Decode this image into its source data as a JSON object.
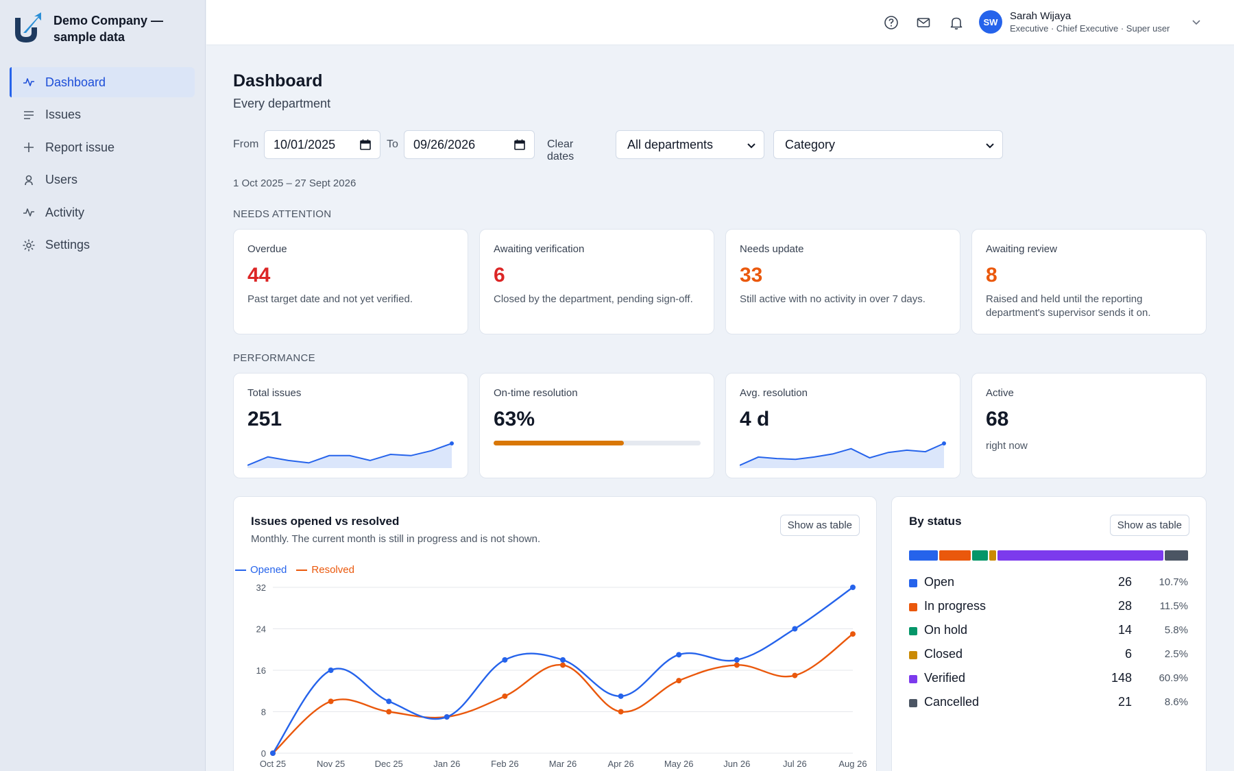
{
  "brand": {
    "name": "Demo Company — sample data"
  },
  "nav": {
    "items": [
      {
        "label": "Dashboard",
        "icon": "activity-icon",
        "active": true
      },
      {
        "label": "Issues",
        "icon": "list-icon",
        "active": false
      },
      {
        "label": "Report issue",
        "icon": "plus-icon",
        "active": false
      },
      {
        "label": "Users",
        "icon": "user-icon",
        "active": false
      },
      {
        "label": "Activity",
        "icon": "activity-icon",
        "active": false
      },
      {
        "label": "Settings",
        "icon": "gear-icon",
        "active": false
      }
    ]
  },
  "header": {
    "user": {
      "initials": "SW",
      "name": "Sarah Wijaya",
      "role": "Executive · Chief Executive · Super user"
    }
  },
  "page": {
    "title": "Dashboard",
    "subtitle": "Every department"
  },
  "filters": {
    "from_label": "From",
    "from_value": "10/01/2025",
    "to_label": "To",
    "to_value": "09/26/2026",
    "clear_label": "Clear dates",
    "department": "All departments",
    "category": "Category",
    "range_text": "1 Oct 2025 – 27 Sept 2026"
  },
  "attention": {
    "section_label": "NEEDS ATTENTION",
    "cards": [
      {
        "label": "Overdue",
        "value": "44",
        "desc": "Past target date and not yet verified.",
        "color": "#dc2626"
      },
      {
        "label": "Awaiting verification",
        "value": "6",
        "desc": "Closed by the department, pending sign-off.",
        "color": "#dc2626"
      },
      {
        "label": "Needs update",
        "value": "33",
        "desc": "Still active with no activity in over 7 days.",
        "color": "#ea580c"
      },
      {
        "label": "Awaiting review",
        "value": "8",
        "desc": "Raised and held until the reporting department's supervisor sends it on.",
        "color": "#ea580c"
      }
    ]
  },
  "performance": {
    "section_label": "PERFORMANCE",
    "total": {
      "label": "Total issues",
      "value": "251",
      "spark": [
        3,
        10,
        7,
        5,
        11,
        11,
        7,
        12,
        11,
        15,
        21
      ]
    },
    "ontime": {
      "label": "On-time resolution",
      "value": "63%",
      "progress": 0.63
    },
    "avg": {
      "label": "Avg. resolution",
      "value": "4 d",
      "spark": [
        2,
        13,
        11,
        10,
        13,
        17,
        24,
        12,
        19,
        22,
        20,
        31
      ]
    },
    "active": {
      "label": "Active",
      "value": "68",
      "sub": "right now"
    }
  },
  "trend": {
    "title": "Issues opened vs resolved",
    "subtitle": "Monthly. The current month is still in progress and is not shown.",
    "button": "Show as table"
  },
  "status": {
    "title": "By status",
    "button": "Show as table",
    "items": [
      {
        "name": "Open",
        "count": "26",
        "pct": "10.7%",
        "share": 10.7,
        "color": "#2563eb"
      },
      {
        "name": "In progress",
        "count": "28",
        "pct": "11.5%",
        "share": 11.5,
        "color": "#ea580c"
      },
      {
        "name": "On hold",
        "count": "14",
        "pct": "5.8%",
        "share": 5.8,
        "color": "#059669"
      },
      {
        "name": "Closed",
        "count": "6",
        "pct": "2.5%",
        "share": 2.5,
        "color": "#ca8a04"
      },
      {
        "name": "Verified",
        "count": "148",
        "pct": "60.9%",
        "share": 60.9,
        "color": "#7c3aed"
      },
      {
        "name": "Cancelled",
        "count": "21",
        "pct": "8.6%",
        "share": 8.6,
        "color": "#4b5563"
      }
    ]
  },
  "chart_data": {
    "type": "line",
    "categories": [
      "Oct 25",
      "Nov 25",
      "Dec 25",
      "Jan 26",
      "Feb 26",
      "Mar 26",
      "Apr 26",
      "May 26",
      "Jun 26",
      "Jul 26",
      "Aug 26"
    ],
    "series": [
      {
        "name": "Opened",
        "color": "#2563eb",
        "values": [
          0,
          16,
          10,
          7,
          18,
          18,
          11,
          19,
          18,
          24,
          32
        ]
      },
      {
        "name": "Resolved",
        "color": "#ea580c",
        "values": [
          0,
          10,
          8,
          7,
          11,
          17,
          8,
          14,
          17,
          15,
          23
        ]
      }
    ],
    "yticks": [
      0,
      8,
      16,
      24,
      32
    ],
    "ylim": [
      0,
      32
    ],
    "grid": true,
    "legend": "top-left"
  }
}
